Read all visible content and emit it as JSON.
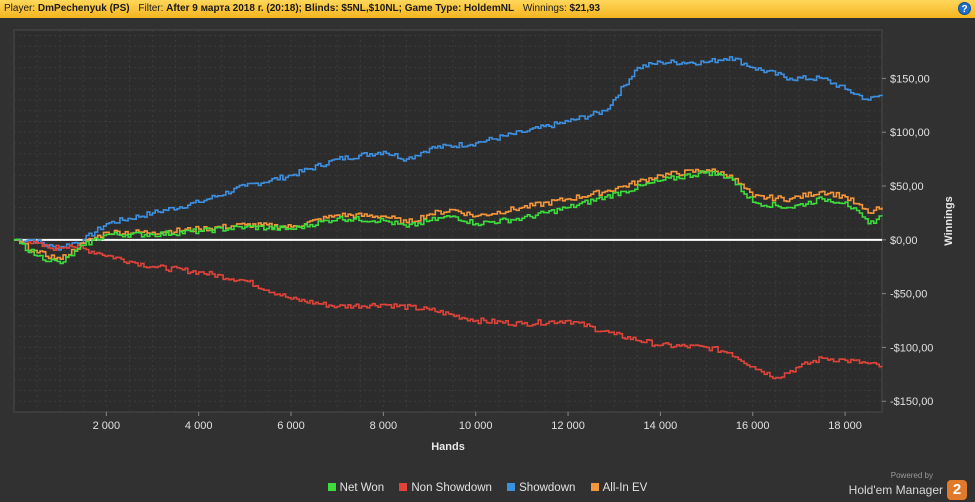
{
  "header": {
    "player_label": "Player:",
    "player": "DmPechenyuk (PS)",
    "filter_label": "Filter:",
    "filter": "After 9 марта 2018 г. (20:18); Blinds: $5NL,$10NL; Game Type: HoldemNL",
    "winnings_label": "Winnings:",
    "winnings": "$21,93",
    "help_icon": "?"
  },
  "chart_data": {
    "type": "line",
    "xlabel": "Hands",
    "ylabel": "Winnings",
    "xlim": [
      0,
      18800
    ],
    "ylim": [
      -160,
      195
    ],
    "x_ticks": [
      2000,
      4000,
      6000,
      8000,
      10000,
      12000,
      14000,
      16000,
      18000
    ],
    "x_tick_labels": [
      "2 000",
      "4 000",
      "6 000",
      "8 000",
      "10 000",
      "12 000",
      "14 000",
      "16 000",
      "18 000"
    ],
    "y_ticks": [
      150,
      100,
      50,
      0,
      -50,
      -100,
      -150
    ],
    "y_tick_labels": [
      "$150,00",
      "$100,00",
      "$50,00",
      "$0,00",
      "-$50,00",
      "-$100,00",
      "-$150,00"
    ],
    "grid": true,
    "legend_position": "bottom",
    "series": [
      {
        "name": "Net Won",
        "color": "#3ddc3d",
        "x": [
          0,
          500,
          1000,
          1500,
          2000,
          3000,
          4000,
          5000,
          6000,
          7000,
          8000,
          8500,
          9000,
          9500,
          10000,
          11000,
          12000,
          12800,
          13200,
          14000,
          15000,
          15500,
          16000,
          16800,
          17500,
          18000,
          18500,
          18800
        ],
        "y": [
          0,
          -15,
          -22,
          -5,
          5,
          5,
          8,
          12,
          10,
          20,
          18,
          12,
          18,
          22,
          15,
          20,
          30,
          40,
          45,
          55,
          63,
          58,
          35,
          30,
          38,
          35,
          15,
          22
        ]
      },
      {
        "name": "Non Showdown",
        "color": "#e0433a",
        "x": [
          0,
          300,
          800,
          1200,
          1800,
          2500,
          3000,
          4000,
          5000,
          6000,
          7000,
          8000,
          9000,
          10000,
          11000,
          12000,
          13000,
          14000,
          15000,
          15500,
          16000,
          16500,
          17000,
          17500,
          18000,
          18500,
          18800
        ],
        "y": [
          0,
          -2,
          -8,
          -5,
          -12,
          -20,
          -25,
          -30,
          -38,
          -55,
          -62,
          -60,
          -65,
          -75,
          -78,
          -75,
          -88,
          -98,
          -100,
          -105,
          -118,
          -128,
          -118,
          -110,
          -112,
          -115,
          -118
        ]
      },
      {
        "name": "Showdown",
        "color": "#3d8fe0",
        "x": [
          0,
          400,
          900,
          1500,
          2000,
          3000,
          4000,
          5000,
          6000,
          7000,
          8000,
          8500,
          9000,
          10000,
          11000,
          12000,
          12800,
          13500,
          14000,
          15000,
          15500,
          16000,
          16800,
          17500,
          18000,
          18500,
          18800
        ],
        "y": [
          0,
          0,
          -8,
          0,
          15,
          25,
          35,
          50,
          60,
          75,
          82,
          75,
          85,
          90,
          100,
          110,
          120,
          160,
          165,
          165,
          170,
          160,
          150,
          150,
          140,
          130,
          135
        ]
      },
      {
        "name": "All-In EV",
        "color": "#f5963a",
        "x": [
          0,
          500,
          1000,
          1500,
          2000,
          3000,
          4000,
          5000,
          6000,
          7000,
          8000,
          8500,
          9000,
          9500,
          10000,
          11000,
          12000,
          12800,
          13200,
          14000,
          15000,
          15500,
          16000,
          16800,
          17500,
          18000,
          18500,
          18800
        ],
        "y": [
          0,
          -12,
          -18,
          -3,
          7,
          7,
          10,
          14,
          12,
          23,
          22,
          16,
          24,
          28,
          22,
          30,
          38,
          45,
          50,
          60,
          65,
          60,
          40,
          38,
          45,
          40,
          25,
          30
        ]
      }
    ]
  },
  "legend": {
    "items": [
      {
        "label": "Net Won",
        "color": "#3ddc3d"
      },
      {
        "label": "Non Showdown",
        "color": "#e0433a"
      },
      {
        "label": "Showdown",
        "color": "#3d8fe0"
      },
      {
        "label": "All-In EV",
        "color": "#f5963a"
      }
    ]
  },
  "branding": {
    "powered_by": "Powered by",
    "name": "Hold'em Manager",
    "logo": "2"
  }
}
